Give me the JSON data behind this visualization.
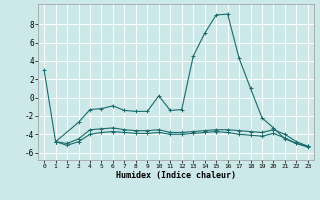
{
  "xlabel": "Humidex (Indice chaleur)",
  "ylabel": "",
  "background_color": "#cce8e8",
  "grid_color": "#ffffff",
  "line_color": "#1a6b6b",
  "xlim": [
    -0.5,
    23.5
  ],
  "ylim": [
    -6.8,
    10.2
  ],
  "x_ticks": [
    0,
    1,
    2,
    3,
    4,
    5,
    6,
    7,
    8,
    9,
    10,
    11,
    12,
    13,
    14,
    15,
    16,
    17,
    18,
    19,
    20,
    21,
    22,
    23
  ],
  "y_ticks": [
    -6,
    -4,
    -2,
    0,
    2,
    4,
    6,
    8
  ],
  "series": [
    {
      "x": [
        0,
        1,
        3,
        4,
        5,
        6,
        7,
        8,
        9,
        10,
        11,
        12,
        13,
        14,
        15,
        16,
        17,
        18,
        19,
        20,
        21,
        22,
        23
      ],
      "y": [
        3.0,
        -4.8,
        -2.7,
        -1.3,
        -1.2,
        -0.9,
        -1.4,
        -1.5,
        -1.5,
        0.2,
        -1.4,
        -1.3,
        4.5,
        7.0,
        9.0,
        9.1,
        4.3,
        1.0,
        -2.2,
        -3.3,
        -4.5,
        -5.0,
        -5.3
      ]
    },
    {
      "x": [
        1,
        2,
        3,
        4,
        5,
        6,
        7,
        8,
        9,
        10,
        11,
        12,
        13,
        14,
        15,
        16,
        17,
        18,
        19,
        20,
        21,
        22,
        23
      ],
      "y": [
        -4.8,
        -5.0,
        -4.5,
        -3.5,
        -3.4,
        -3.3,
        -3.5,
        -3.6,
        -3.6,
        -3.5,
        -3.8,
        -3.8,
        -3.7,
        -3.6,
        -3.5,
        -3.5,
        -3.6,
        -3.7,
        -3.8,
        -3.5,
        -4.0,
        -4.8,
        -5.3
      ]
    },
    {
      "x": [
        1,
        2,
        3,
        4,
        5,
        6,
        7,
        8,
        9,
        10,
        11,
        12,
        13,
        14,
        15,
        16,
        17,
        18,
        19,
        20,
        21,
        22,
        23
      ],
      "y": [
        -4.8,
        -5.2,
        -4.8,
        -4.0,
        -3.8,
        -3.7,
        -3.8,
        -3.9,
        -3.9,
        -3.8,
        -4.0,
        -4.0,
        -3.9,
        -3.8,
        -3.7,
        -3.8,
        -4.0,
        -4.1,
        -4.2,
        -3.9,
        -4.4,
        -5.0,
        -5.4
      ]
    }
  ]
}
